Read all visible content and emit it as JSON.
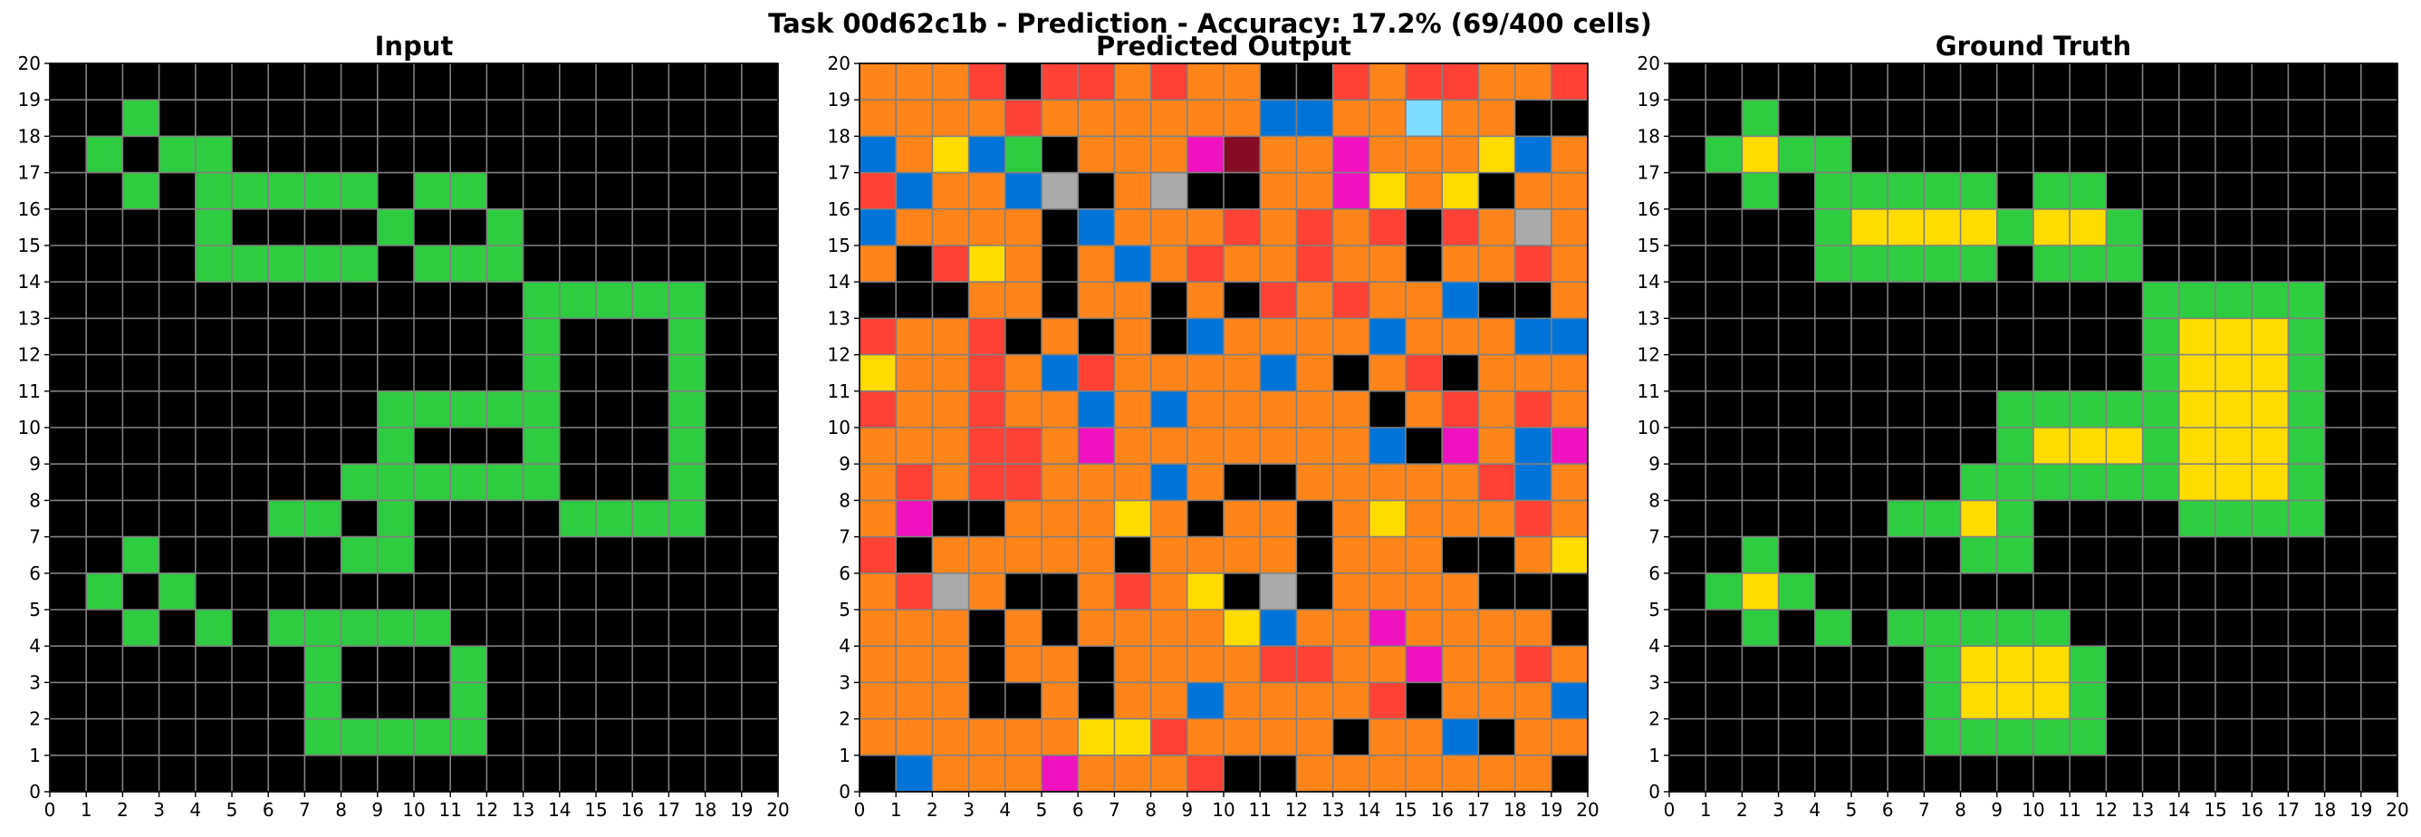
{
  "title": "Task 00d62c1b - Prediction - Accuracy: 17.2% (69/400 cells)",
  "colors": {
    "0": "#000000",
    "1": "#0074D9",
    "2": "#FF4136",
    "3": "#2ECC40",
    "4": "#FFDC00",
    "5": "#AAAAAA",
    "6": "#F012BE",
    "7": "#FF851B",
    "8": "#7FDBFF",
    "9": "#870C25",
    "gridline": "#808080"
  },
  "chart_data": [
    {
      "type": "heatmap",
      "title": "Input",
      "xlim": [
        0,
        20
      ],
      "ylim": [
        0,
        20
      ],
      "xticks": [
        "0",
        "1",
        "2",
        "3",
        "4",
        "5",
        "6",
        "7",
        "8",
        "9",
        "10",
        "11",
        "12",
        "13",
        "14",
        "15",
        "16",
        "17",
        "18",
        "19",
        "20"
      ],
      "yticks": [
        "0",
        "1",
        "2",
        "3",
        "4",
        "5",
        "6",
        "7",
        "8",
        "9",
        "10",
        "11",
        "12",
        "13",
        "14",
        "15",
        "16",
        "17",
        "18",
        "19",
        "20"
      ],
      "rows": [
        "00000000000000000000",
        "00300000000000000000",
        "03033000000000000000",
        "00303333303300000000",
        "00003000030030000000",
        "00003333303330000000",
        "00000000000003333300",
        "00000000000003000300",
        "00000000000003000300",
        "00000000033333000300",
        "00000000030003000300",
        "00000000333333000300",
        "00000033030000333300",
        "00300000330000000000",
        "03030000000000000000",
        "00303033333000000000",
        "00000003000300000000",
        "00000003000300000000",
        "00000003333300000000",
        "00000000000000000000"
      ]
    },
    {
      "type": "heatmap",
      "title": "Predicted Output",
      "xlim": [
        0,
        20
      ],
      "ylim": [
        0,
        20
      ],
      "xticks": [
        "0",
        "1",
        "2",
        "3",
        "4",
        "5",
        "6",
        "7",
        "8",
        "9",
        "10",
        "11",
        "12",
        "13",
        "14",
        "15",
        "16",
        "17",
        "18",
        "19",
        "20"
      ],
      "yticks": [
        "0",
        "1",
        "2",
        "3",
        "4",
        "5",
        "6",
        "7",
        "8",
        "9",
        "10",
        "11",
        "12",
        "13",
        "14",
        "15",
        "16",
        "17",
        "18",
        "19",
        "20"
      ],
      "rows": [
        "77720227277002722772",
        "77772777777117787700",
        "17413077769776777417",
        "21771507500776474077",
        "17777017772727202757",
        "70247071727727707727",
        "00077077070272771007",
        "27720707017777177711",
        "47727127777170720777",
        "27727717177777072727",
        "77722767777777106716",
        "72722777170077777217",
        "76007774707707477727",
        "20777770777707770074",
        "72570072740507777000",
        "77707077774177677770",
        "77707707777227767727",
        "77700707717777207771",
        "77777744277770771077",
        "01777677720077777770"
      ]
    },
    {
      "type": "heatmap",
      "title": "Ground Truth",
      "xlim": [
        0,
        20
      ],
      "ylim": [
        0,
        20
      ],
      "xticks": [
        "0",
        "1",
        "2",
        "3",
        "4",
        "5",
        "6",
        "7",
        "8",
        "9",
        "10",
        "11",
        "12",
        "13",
        "14",
        "15",
        "16",
        "17",
        "18",
        "19",
        "20"
      ],
      "yticks": [
        "0",
        "1",
        "2",
        "3",
        "4",
        "5",
        "6",
        "7",
        "8",
        "9",
        "10",
        "11",
        "12",
        "13",
        "14",
        "15",
        "16",
        "17",
        "18",
        "19",
        "20"
      ],
      "rows": [
        "00000000000000000000",
        "00300000000000000000",
        "03433000000000000000",
        "00303333303300000000",
        "00003444434430000000",
        "00003333303330000000",
        "00000000000003333300",
        "00000000000003444300",
        "00000000000003444300",
        "00000000033333444300",
        "00000000034443444300",
        "00000000333333444300",
        "00000033430000333300",
        "00300000330000000000",
        "03430000000000000000",
        "00303033333000000000",
        "00000003444300000000",
        "00000003444300000000",
        "00000003333300000000",
        "00000000000000000000"
      ]
    }
  ]
}
